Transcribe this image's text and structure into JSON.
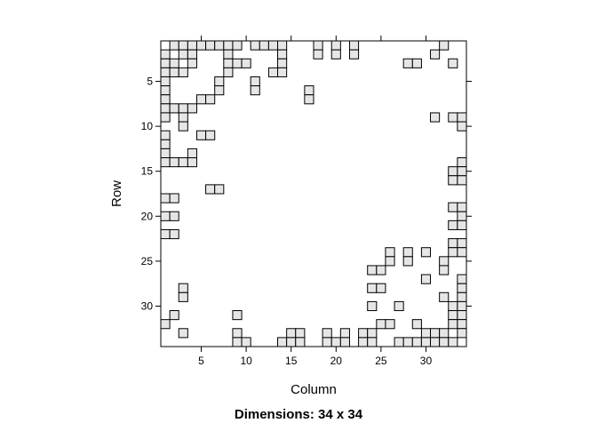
{
  "chart_data": {
    "type": "heatmap",
    "title": "Dimensions: 34 x 34",
    "xlabel": "Column",
    "ylabel": "Row",
    "xlim": [
      1,
      34
    ],
    "ylim": [
      1,
      34
    ],
    "x_ticks": [
      5,
      10,
      15,
      20,
      25,
      30
    ],
    "y_ticks": [
      5,
      10,
      15,
      20,
      25,
      30
    ],
    "cell_color": "#e6e6e6",
    "border_color": "#000000",
    "nonzero": [
      {
        "row": 1,
        "cols": [
          2,
          3,
          4,
          5,
          6,
          7,
          8,
          9,
          11,
          12,
          13,
          14,
          18,
          20,
          22,
          32
        ]
      },
      {
        "row": 2,
        "cols": [
          1,
          3,
          4,
          8,
          14,
          18,
          20,
          22,
          31
        ]
      },
      {
        "row": 3,
        "cols": [
          1,
          2,
          4,
          8,
          9,
          10,
          14,
          28,
          29,
          33
        ]
      },
      {
        "row": 4,
        "cols": [
          1,
          2,
          3,
          8,
          13,
          14
        ]
      },
      {
        "row": 5,
        "cols": [
          1,
          7,
          11
        ]
      },
      {
        "row": 6,
        "cols": [
          1,
          7,
          11,
          17
        ]
      },
      {
        "row": 7,
        "cols": [
          1,
          5,
          6,
          17
        ]
      },
      {
        "row": 8,
        "cols": [
          1,
          2,
          3,
          4
        ]
      },
      {
        "row": 9,
        "cols": [
          1,
          3,
          31,
          33,
          34
        ]
      },
      {
        "row": 10,
        "cols": [
          3,
          34
        ]
      },
      {
        "row": 11,
        "cols": [
          1,
          5,
          6
        ]
      },
      {
        "row": 12,
        "cols": [
          1
        ]
      },
      {
        "row": 13,
        "cols": [
          1,
          4
        ]
      },
      {
        "row": 14,
        "cols": [
          1,
          2,
          3,
          4,
          34
        ]
      },
      {
        "row": 15,
        "cols": [
          33,
          34
        ]
      },
      {
        "row": 16,
        "cols": [
          33,
          34
        ]
      },
      {
        "row": 17,
        "cols": [
          6,
          7
        ]
      },
      {
        "row": 18,
        "cols": [
          1,
          2
        ]
      },
      {
        "row": 19,
        "cols": [
          33,
          34
        ]
      },
      {
        "row": 20,
        "cols": [
          1,
          2,
          34
        ]
      },
      {
        "row": 21,
        "cols": [
          33,
          34
        ]
      },
      {
        "row": 22,
        "cols": [
          1,
          2
        ]
      },
      {
        "row": 23,
        "cols": [
          33,
          34
        ]
      },
      {
        "row": 24,
        "cols": [
          26,
          28,
          30,
          33,
          34
        ]
      },
      {
        "row": 25,
        "cols": [
          26,
          28,
          32
        ]
      },
      {
        "row": 26,
        "cols": [
          24,
          25,
          32
        ]
      },
      {
        "row": 27,
        "cols": [
          30,
          34
        ]
      },
      {
        "row": 28,
        "cols": [
          3,
          24,
          25,
          34
        ]
      },
      {
        "row": 29,
        "cols": [
          3,
          32,
          34
        ]
      },
      {
        "row": 30,
        "cols": [
          24,
          27,
          33,
          34
        ]
      },
      {
        "row": 31,
        "cols": [
          2,
          9,
          33,
          34
        ]
      },
      {
        "row": 32,
        "cols": [
          1,
          25,
          26,
          29,
          33,
          34
        ]
      },
      {
        "row": 33,
        "cols": [
          3,
          9,
          15,
          16,
          19,
          21,
          23,
          24,
          30,
          31,
          32,
          34
        ]
      },
      {
        "row": 34,
        "cols": [
          9,
          10,
          14,
          15,
          16,
          19,
          20,
          21,
          23,
          24,
          27,
          28,
          29,
          30,
          31,
          32,
          33
        ]
      }
    ]
  }
}
